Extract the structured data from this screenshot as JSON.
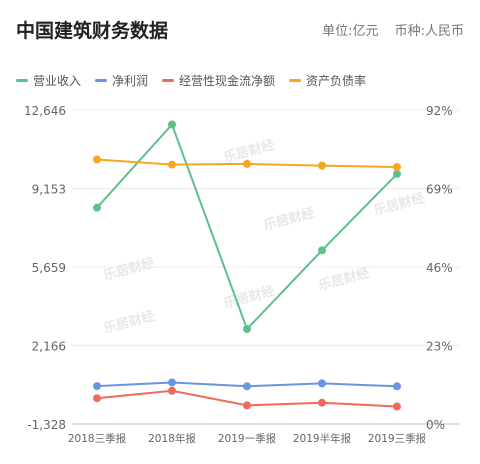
{
  "header": {
    "title": "中国建筑财务数据",
    "unit": "单位:亿元",
    "currency": "币种:人民币"
  },
  "watermark": "乐居财经",
  "chart_data": {
    "type": "line",
    "categories": [
      "2018三季报",
      "2018年报",
      "2019一季报",
      "2019半年报",
      "2019三季报"
    ],
    "left_axis": {
      "ticks": [
        "12,646",
        "9,153",
        "5,659",
        "2,166",
        "-1,328"
      ],
      "range": [
        -1328,
        12646
      ]
    },
    "right_axis": {
      "ticks": [
        "92%",
        "69%",
        "46%",
        "23%",
        "0%"
      ],
      "range": [
        0,
        92
      ]
    },
    "series": [
      {
        "name": "营业收入",
        "color": "#5ec08c",
        "axis": "left",
        "values": [
          8300,
          12000,
          2900,
          6400,
          9800
        ]
      },
      {
        "name": "净利润",
        "color": "#6a95e2",
        "axis": "left",
        "values": [
          360,
          520,
          350,
          480,
          350
        ]
      },
      {
        "name": "经营性现金流净额",
        "color": "#ef6b5c",
        "axis": "left",
        "values": [
          -180,
          150,
          -500,
          -380,
          -550
        ]
      },
      {
        "name": "资产负债率",
        "color": "#f6a623",
        "axis": "right",
        "values": [
          77.5,
          76.0,
          76.2,
          75.7,
          75.3
        ]
      }
    ]
  }
}
